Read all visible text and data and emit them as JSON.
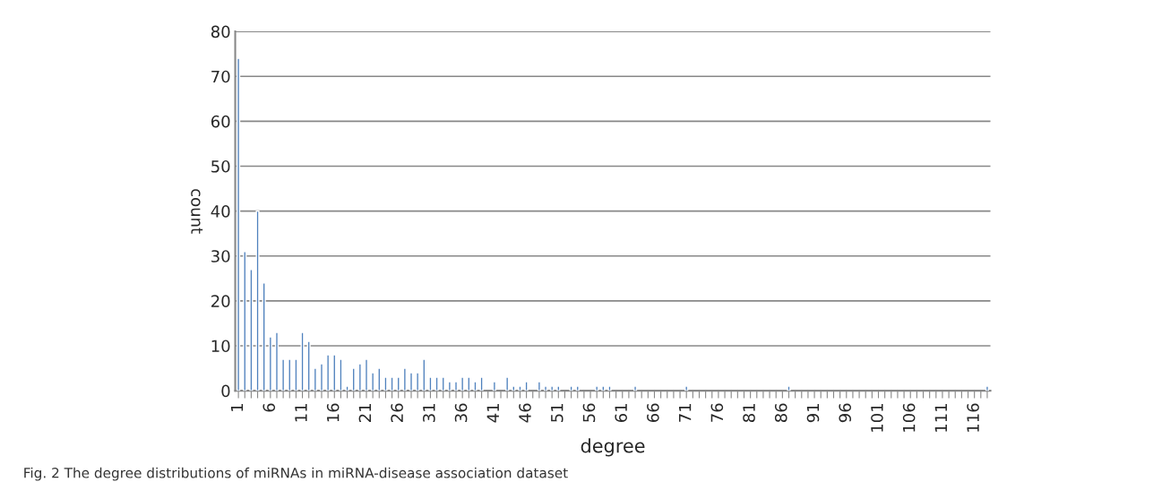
{
  "chart_data": {
    "type": "bar",
    "xlabel": "degree",
    "ylabel": "count",
    "categories": [
      "1",
      null,
      null,
      null,
      null,
      "6",
      null,
      null,
      null,
      null,
      "11",
      null,
      null,
      null,
      null,
      "16",
      null,
      null,
      null,
      null,
      "21",
      null,
      null,
      null,
      null,
      "26",
      null,
      null,
      null,
      null,
      "31",
      null,
      null,
      null,
      null,
      "36",
      null,
      null,
      null,
      null,
      "41",
      null,
      null,
      null,
      null,
      "46",
      null,
      null,
      null,
      null,
      "51",
      null,
      null,
      null,
      null,
      "56",
      null,
      null,
      null,
      null,
      "61",
      null,
      null,
      null,
      null,
      "66",
      null,
      null,
      null,
      null,
      "71",
      null,
      null,
      null,
      null,
      "76",
      null,
      null,
      null,
      null,
      "81",
      null,
      null,
      null,
      null,
      "86",
      null,
      null,
      null,
      null,
      "91",
      null,
      null,
      null,
      null,
      "96",
      null,
      null,
      null,
      null,
      "101",
      null,
      null,
      null,
      null,
      "106",
      null,
      null,
      null,
      null,
      "111",
      null,
      null,
      null,
      null,
      "116",
      null,
      null
    ],
    "values": [
      74,
      31,
      27,
      40,
      24,
      12,
      13,
      7,
      7,
      7,
      13,
      11,
      5,
      6,
      8,
      8,
      7,
      1,
      5,
      6,
      7,
      4,
      5,
      3,
      3,
      3,
      5,
      4,
      4,
      7,
      3,
      3,
      3,
      2,
      2,
      3,
      3,
      2,
      3,
      0,
      2,
      0,
      3,
      1,
      1,
      2,
      0,
      2,
      1,
      1,
      1,
      0,
      1,
      1,
      0,
      0,
      1,
      1,
      1,
      0,
      0,
      0,
      1,
      0,
      0,
      0,
      0,
      0,
      0,
      0,
      1,
      0,
      0,
      0,
      0,
      0,
      0,
      0,
      0,
      0,
      0,
      0,
      0,
      0,
      0,
      0,
      1,
      0,
      0,
      0,
      0,
      0,
      0,
      0,
      0,
      0,
      0,
      0,
      0,
      0,
      0,
      0,
      0,
      0,
      0,
      0,
      0,
      0,
      0,
      0,
      0,
      0,
      0,
      0,
      0,
      0,
      0,
      1
    ],
    "color": "#4f81bd",
    "ylim": [
      0,
      80
    ],
    "yticks": [
      0,
      10,
      20,
      30,
      40,
      50,
      60,
      70,
      80
    ],
    "grid": "y",
    "legend": false,
    "annotations": [
      "Fig. 2 The degree distributions of miRNAs in miRNA-disease association dataset"
    ]
  }
}
